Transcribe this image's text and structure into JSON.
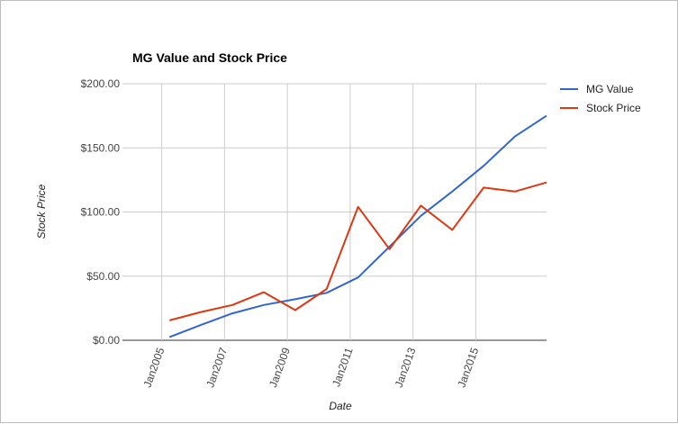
{
  "chart_data": {
    "type": "line",
    "title": "MG Value and Stock Price",
    "xlabel": "Date",
    "ylabel": "Stock Price",
    "x_tick_labels": [
      "Jan2005",
      "Jan2007",
      "Jan2009",
      "Jan2011",
      "Jan2013",
      "Jan2015"
    ],
    "x": [
      "2005-04",
      "2006-04",
      "2007-04",
      "2008-04",
      "2009-04",
      "2010-04",
      "2011-04",
      "2012-04",
      "2013-04",
      "2014-04",
      "2015-04",
      "2016-04",
      "2017-04"
    ],
    "y_tick_labels": [
      "$0.00",
      "$50.00",
      "$100.00",
      "$150.00",
      "$200.00"
    ],
    "ylim": [
      0,
      200
    ],
    "grid": true,
    "legend_position": "right",
    "series": [
      {
        "name": "MG Value",
        "color": "#3366cc",
        "values": [
          2.5,
          12,
          21,
          27.5,
          32,
          37,
          49,
          73,
          97,
          116,
          136,
          159,
          175
        ]
      },
      {
        "name": "Stock Price",
        "color": "#dc3912",
        "values": [
          15.5,
          22,
          27.5,
          37.5,
          23.5,
          40,
          104,
          71,
          105,
          86,
          119,
          116,
          123
        ]
      }
    ]
  }
}
